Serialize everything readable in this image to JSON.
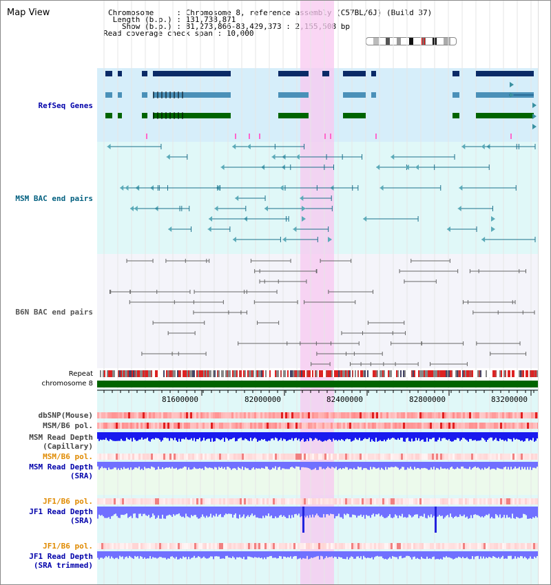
{
  "header": {
    "view_title": "Map View",
    "info_lines": [
      "Chromosome     : Chromosome 8, reference assembly (C57BL/6J) (Build 37)",
      " Length (b.p.) : 131,738,871",
      "   Show (b.p.) : 81,273,866-83,429,373 : 2,155,508 bp",
      "Read coverage check span : 10,000"
    ]
  },
  "tracks": {
    "refseq": {
      "label": "RefSeq Genes",
      "color": "#0000aa"
    },
    "msm_bac": {
      "label": "MSM BAC end pairs",
      "color": "#005f7f"
    },
    "b6n_bac": {
      "label": "B6N BAC end pairs",
      "color": "#555555"
    },
    "repeat": {
      "label": "Repeat"
    },
    "chromosome": {
      "label": "chromosome 8",
      "color": "#006400"
    },
    "dbsnp": {
      "label": "dbSNP(Mouse)",
      "color": "#444444"
    },
    "msm_b6_pol_1": {
      "label": "MSM/B6 pol.",
      "color": "#444444"
    },
    "msm_read_depth_cap": {
      "label": "MSM Read Depth\n(Capillary)",
      "color": "#444444"
    },
    "msm_b6_pol_2": {
      "label": "MSM/B6 pol.",
      "color": "#e08a00"
    },
    "msm_read_depth_sra": {
      "label": "MSM Read Depth\n(SRA)",
      "color": "#0000aa"
    },
    "jf1_b6_pol_1": {
      "label": "JF1/B6 pol.",
      "color": "#e08a00"
    },
    "jf1_read_depth_sra": {
      "label": "JF1 Read Depth\n(SRA)",
      "color": "#0000aa"
    },
    "jf1_b6_pol_2": {
      "label": "JF1/B6 pol.",
      "color": "#e08a00"
    },
    "jf1_read_depth_trim": {
      "label": "JF1 Read Depth\n(SRA trimmed)",
      "color": "#0000aa"
    }
  },
  "axis": {
    "ticks": [
      "81600000",
      "82000000",
      "82400000",
      "82800000",
      "83200000"
    ]
  },
  "colors": {
    "highlight": "#f8c8f0",
    "refseq_bg": "#d6eefa",
    "gene_dark": "#0a2a66",
    "gene_mid": "#4a90b8",
    "gene_green": "#006400",
    "msm_bg": "#e0f8f8",
    "msm_line": "#1a6f8a",
    "b6n_bg": "#f4f4fa",
    "depth_blue": "#1a1aee",
    "depth_light": "#7070ff"
  }
}
